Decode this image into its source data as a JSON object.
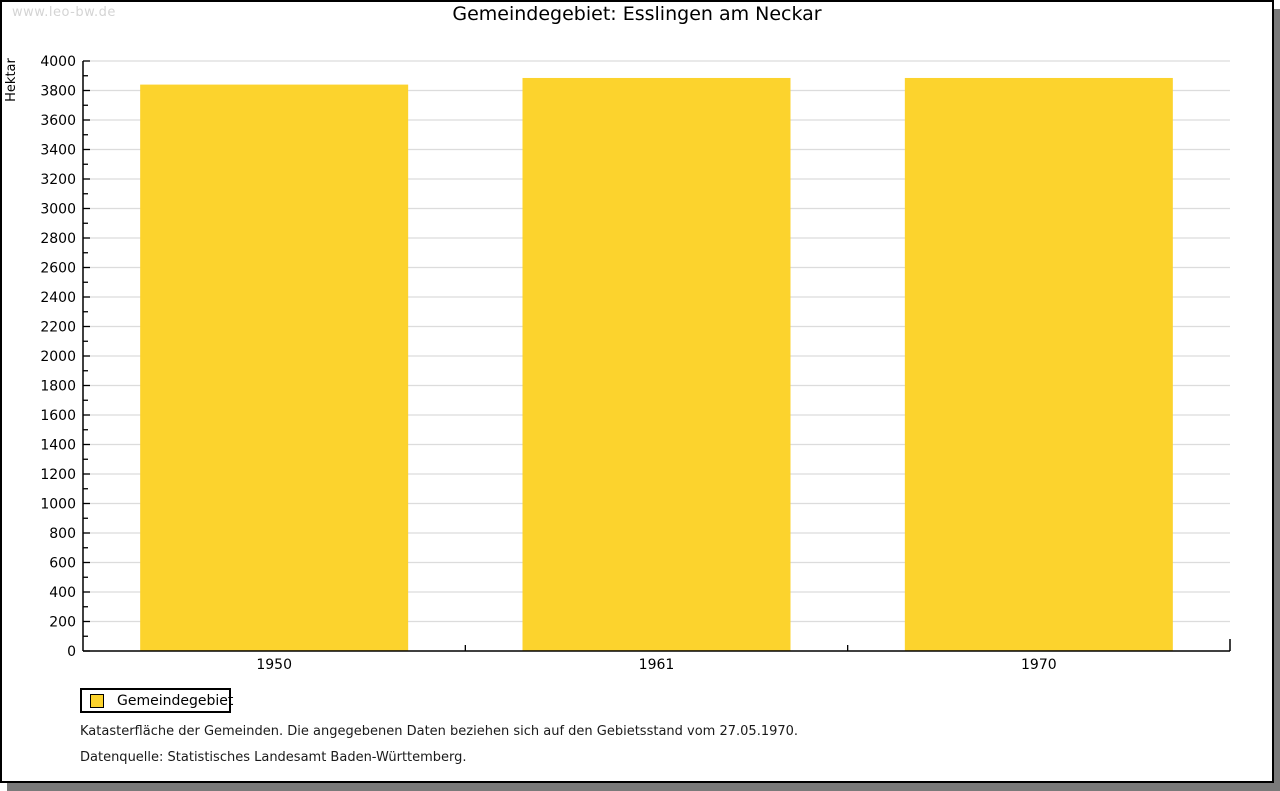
{
  "watermark": "www.leo-bw.de",
  "title": "Gemeindegebiet: Esslingen am Neckar",
  "legend": {
    "label": "Gemeindegebiet",
    "swatch_color": "#fcd32d"
  },
  "footnotes": {
    "line1": "Katasterfläche der Gemeinden. Die angegebenen Daten beziehen sich auf den Gebietsstand vom 27.05.1970.",
    "line2": "Datenquelle: Statistisches Landesamt Baden-Württemberg."
  },
  "chart_data": {
    "type": "bar",
    "title": "Gemeindegebiet: Esslingen am Neckar",
    "categories": [
      "1950",
      "1961",
      "1970"
    ],
    "series": [
      {
        "name": "Gemeindegebiet",
        "values": [
          3840,
          3885,
          3885
        ],
        "color": "#fcd32d"
      }
    ],
    "xlabel": "",
    "ylabel": "Hektar",
    "ylim": [
      0,
      4000
    ],
    "ytick_step": 200,
    "yminor_step": 100,
    "grid": true,
    "legend_position": "bottom-left"
  },
  "colors": {
    "bar": "#fcd32d",
    "grid": "#dcdcdc",
    "axis": "#000000",
    "text": "#000000",
    "watermark": "#d4d4d4",
    "frame_border": "#000000",
    "frame_shadow": "#7a7a7a"
  }
}
